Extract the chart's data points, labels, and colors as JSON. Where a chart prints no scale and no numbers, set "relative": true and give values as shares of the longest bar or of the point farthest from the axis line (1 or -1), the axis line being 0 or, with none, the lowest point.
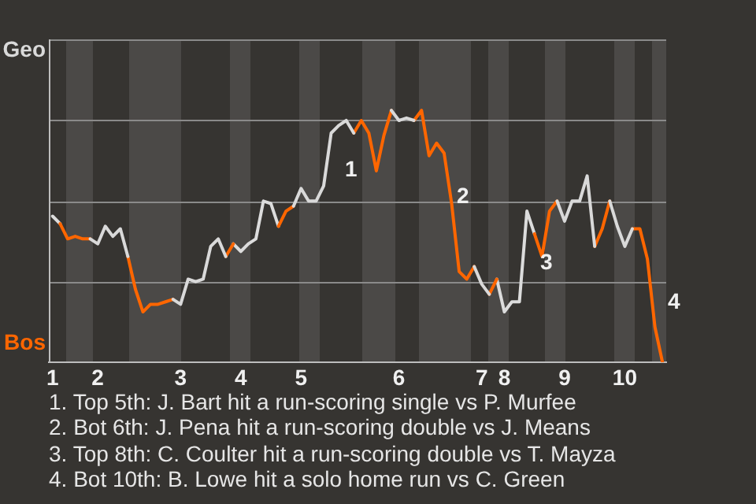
{
  "chart_data": {
    "type": "line",
    "relative": true,
    "categories": [
      "1",
      null,
      null,
      null,
      null,
      null,
      "2",
      null,
      null,
      null,
      null,
      null,
      null,
      null,
      null,
      null,
      null,
      "3",
      null,
      null,
      null,
      null,
      null,
      null,
      null,
      "4",
      null,
      null,
      null,
      null,
      null,
      null,
      null,
      "5",
      null,
      null,
      null,
      null,
      null,
      null,
      null,
      null,
      null,
      null,
      null,
      null,
      "6",
      null,
      null,
      null,
      null,
      null,
      null,
      null,
      null,
      null,
      null,
      "7",
      null,
      null,
      "8",
      null,
      null,
      null,
      null,
      null,
      null,
      null,
      "9",
      null,
      null,
      null,
      null,
      null,
      null,
      null,
      "10",
      null,
      null,
      null,
      null,
      null
    ],
    "grid": "y",
    "legend": false,
    "marker": "none",
    "line_style": "solid",
    "series": [
      {
        "color": "#d9d9d9",
        "values": [
          null,
          null,
          null,
          null,
          null,
          0.49,
          0.47,
          0.54,
          0.5,
          0.53,
          0.42,
          null,
          null,
          null,
          null,
          null,
          0.25,
          0.23,
          0.33,
          0.32,
          0.33,
          0.46,
          0.49,
          0.42,
          null,
          null,
          null,
          null,
          null,
          null,
          null,
          null,
          0.62,
          0.69,
          0.64,
          0.64,
          0.7,
          0.91,
          0.94,
          0.96,
          0.91,
          null,
          null,
          null,
          null,
          1,
          0.96,
          0.97,
          0.96,
          null,
          null,
          null,
          null,
          null,
          null,
          null,
          0.38,
          0.31,
          0.27,
          null,
          null,
          null,
          null,
          null,
          null,
          null,
          null,
          0.64,
          0.56,
          0.64,
          0.64,
          0.74,
          0.46,
          null,
          0.64,
          0.54,
          0.46,
          0.53,
          null,
          null,
          null,
          null
        ]
      },
      {
        "color": "#ff6600",
        "values": [
          null,
          0.55,
          0.49,
          0.5,
          0.49,
          0.49,
          null,
          null,
          null,
          null,
          0.42,
          0.29,
          0.2,
          0.23,
          0.23,
          0.24,
          0.25,
          null,
          null,
          null,
          null,
          null,
          null,
          0.42,
          0.47,
          null,
          null,
          null,
          null,
          null,
          0.54,
          0.6,
          0.62,
          null,
          null,
          null,
          null,
          null,
          null,
          null,
          0.91,
          0.96,
          0.91,
          0.76,
          0.9,
          1,
          null,
          null,
          0.96,
          1,
          0.82,
          0.87,
          0.83,
          0.63,
          0.36,
          0.33,
          0.38,
          null,
          0.27,
          0.33,
          null,
          null,
          null,
          null,
          0.51,
          0.42,
          0.6,
          0.64,
          null,
          null,
          null,
          null,
          0.46,
          0.53,
          0.64,
          null,
          null,
          0.53,
          0.53,
          0.41,
          0.14,
          0
        ]
      },
      {
        "color": "#dcdcdc",
        "values": [
          0.58,
          0.55,
          null,
          null,
          null,
          null,
          null,
          null,
          null,
          null,
          null,
          null,
          null,
          null,
          null,
          null,
          null,
          null,
          null,
          null,
          null,
          null,
          null,
          null,
          0.47,
          0.44,
          0.47,
          0.49,
          0.64,
          0.63,
          0.54,
          null,
          null,
          null,
          null,
          null,
          null,
          null,
          null,
          null,
          null,
          null,
          null,
          null,
          null,
          null,
          null,
          null,
          null,
          null,
          null,
          null,
          null,
          null,
          null,
          null,
          null,
          null,
          null,
          0.33,
          0.2,
          0.24,
          0.24,
          0.6,
          0.51,
          null,
          null,
          null,
          null,
          null,
          null,
          null,
          null,
          null,
          null,
          null,
          null,
          null,
          null,
          null,
          null,
          null
        ]
      }
    ],
    "annotations": [
      "Geo",
      "Bos",
      "1",
      "2",
      "3",
      "4",
      "1. Top 5th: J. Bart hit a run-scoring single vs P. Murfee",
      "2. Bot 6th: J. Pena hit a run-scoring double vs J. Means",
      "3. Top 8th: C. Coulter hit a run-scoring double vs T. Mayza",
      "4. Bot 10th: B. Lowe hit a solo home run vs C. Green"
    ]
  }
}
